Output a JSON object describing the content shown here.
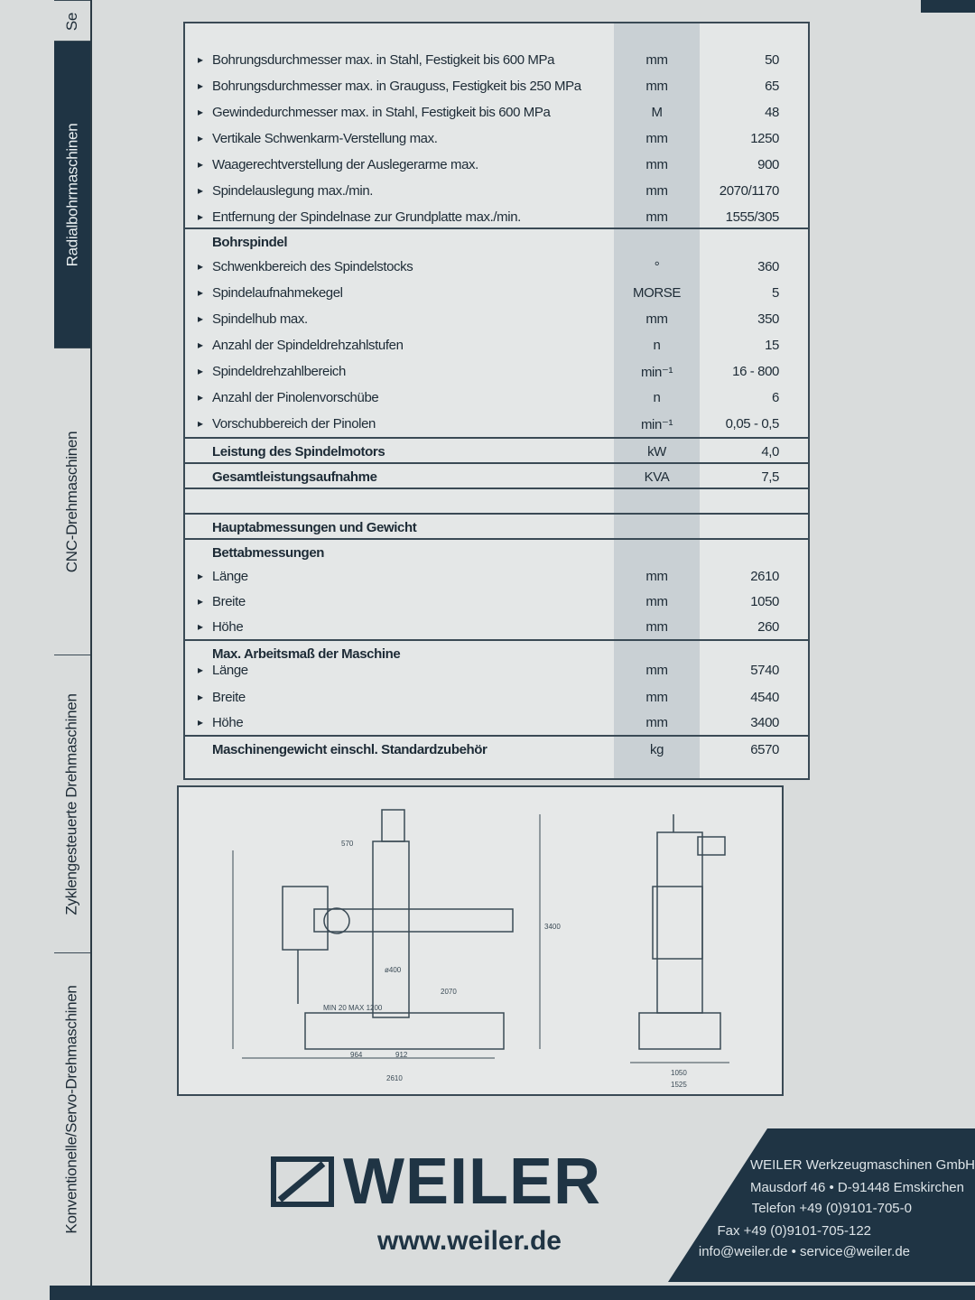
{
  "sidebar": {
    "tabs": [
      {
        "label": "Se"
      },
      {
        "label": "Radialbohrmaschinen",
        "active": true
      },
      {
        "label": "CNC-Drehmaschinen"
      },
      {
        "label": "Zyklengesteuerte Drehmaschinen"
      },
      {
        "label": "Konventionelle/Servo-Drehmaschinen"
      }
    ]
  },
  "table": {
    "rows": [
      {
        "label": "Bohrungsdurchmesser max. in Stahl, Festigkeit bis 600 MPa",
        "unit": "mm",
        "value": "50"
      },
      {
        "label": "Bohrungsdurchmesser max. in Grauguss, Festigkeit bis 250 MPa",
        "unit": "mm",
        "value": "65"
      },
      {
        "label": "Gewindedurchmesser max. in Stahl, Festigkeit bis 600 MPa",
        "unit": "M",
        "value": "48"
      },
      {
        "label": "Vertikale Schwenkarm-Verstellung max.",
        "unit": "mm",
        "value": "1250"
      },
      {
        "label": "Waagerechtverstellung der Auslegerarme max.",
        "unit": "mm",
        "value": "900"
      },
      {
        "label": "Spindelauslegung max./min.",
        "unit": "mm",
        "value": "2070/1170"
      },
      {
        "label": "Entfernung der Spindelnase zur Grundplatte max./min.",
        "unit": "mm",
        "value": "1555/305"
      },
      {
        "label": "Bohrspindel",
        "header": true
      },
      {
        "label": "Schwenkbereich des Spindelstocks",
        "unit": "°",
        "value": "360"
      },
      {
        "label": "Spindelaufnahmekegel",
        "unit": "MORSE",
        "value": "5"
      },
      {
        "label": "Spindelhub max.",
        "unit": "mm",
        "value": "350"
      },
      {
        "label": "Anzahl der Spindeldrehzahlstufen",
        "unit": "n",
        "value": "15"
      },
      {
        "label": "Spindeldrehzahlbereich",
        "unit": "min⁻¹",
        "value": "16 - 800"
      },
      {
        "label": "Anzahl der Pinolenvorschübe",
        "unit": "n",
        "value": "6"
      },
      {
        "label": "Vorschubbereich der Pinolen",
        "unit": "min⁻¹",
        "value": "0,05 - 0,5"
      },
      {
        "label": "Leistung des Spindelmotors",
        "header": true,
        "unit": "kW",
        "value": "4,0"
      },
      {
        "label": "Gesamtleistungsaufnahme",
        "header": true,
        "unit": "KVA",
        "value": "7,5"
      },
      {
        "label": "",
        "header": true
      },
      {
        "label": "Hauptabmessungen und Gewicht",
        "header": true
      },
      {
        "label": "Bettabmessungen",
        "header": true
      },
      {
        "label": "Länge",
        "unit": "mm",
        "value": "2610"
      },
      {
        "label": "Breite",
        "unit": "mm",
        "value": "1050"
      },
      {
        "label": "Höhe",
        "unit": "mm",
        "value": "260"
      },
      {
        "label": "Max. Arbeitsmaß der Maschine",
        "header": true
      },
      {
        "label": "Länge",
        "unit": "mm",
        "value": "5740"
      },
      {
        "label": "Breite",
        "unit": "mm",
        "value": "4540"
      },
      {
        "label": "Höhe",
        "unit": "mm",
        "value": "3400"
      },
      {
        "label": "Maschinengewicht einschl. Standardzubehör",
        "header": true,
        "unit": "kg",
        "value": "6570"
      }
    ]
  },
  "drawing": {
    "labels": [
      "2610",
      "912",
      "964",
      "1050",
      "1525",
      "ø400",
      "MIN 20 MAX 1200",
      "2070",
      "3400",
      "570"
    ]
  },
  "footer": {
    "logo": "WEILER",
    "url": "www.weiler.de",
    "address": [
      "WEILER Werkzeugmaschinen GmbH",
      "Mausdorf 46 • D-91448 Emskirchen",
      "Telefon +49 (0)9101-705-0",
      "Fax +49 (0)9101-705-122",
      "info@weiler.de • service@weiler.de"
    ]
  },
  "colors": {
    "brand": "#1f3444"
  }
}
